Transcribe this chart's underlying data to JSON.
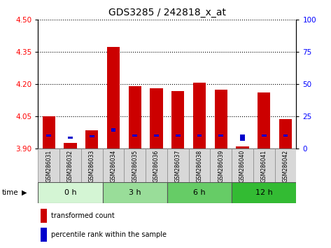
{
  "title": "GDS3285 / 242818_x_at",
  "samples": [
    "GSM286031",
    "GSM286032",
    "GSM286033",
    "GSM286034",
    "GSM286035",
    "GSM286036",
    "GSM286037",
    "GSM286038",
    "GSM286039",
    "GSM286040",
    "GSM286041",
    "GSM286042"
  ],
  "red_values": [
    4.051,
    3.927,
    3.985,
    4.375,
    4.193,
    4.183,
    4.17,
    4.208,
    4.175,
    3.91,
    4.163,
    4.038
  ],
  "blue_heights": [
    0.012,
    0.01,
    0.011,
    0.015,
    0.011,
    0.011,
    0.011,
    0.011,
    0.011,
    0.03,
    0.011,
    0.011
  ],
  "blue_bottoms": [
    3.956,
    3.946,
    3.952,
    3.98,
    3.956,
    3.956,
    3.956,
    3.956,
    3.956,
    3.938,
    3.956,
    3.956
  ],
  "ylim_left": [
    3.9,
    4.5
  ],
  "ylim_right": [
    0,
    100
  ],
  "yticks_left": [
    3.9,
    4.05,
    4.2,
    4.35,
    4.5
  ],
  "yticks_right": [
    0,
    25,
    50,
    75,
    100
  ],
  "time_groups": [
    {
      "label": "0 h",
      "color": "#d4f5d4",
      "span": [
        0,
        3
      ]
    },
    {
      "label": "3 h",
      "color": "#99dd99",
      "span": [
        3,
        6
      ]
    },
    {
      "label": "6 h",
      "color": "#66cc66",
      "span": [
        6,
        9
      ]
    },
    {
      "label": "12 h",
      "color": "#33bb33",
      "span": [
        9,
        12
      ]
    }
  ],
  "bar_color_red": "#cc0000",
  "bar_color_blue": "#0000cc",
  "base": 3.9,
  "bar_width": 0.6,
  "blue_bar_width": 0.22,
  "legend_red": "transformed count",
  "legend_blue": "percentile rank within the sample",
  "grid_color": "#000000",
  "title_fontsize": 10,
  "tick_fontsize": 7.5,
  "xtick_fontsize": 5.5
}
